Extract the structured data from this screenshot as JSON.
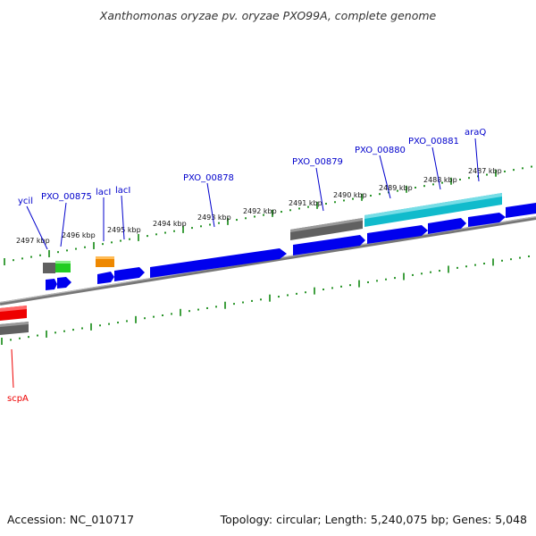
{
  "title": "Xanthomonas oryzae pv. oryzae PXO99A, complete genome",
  "footer": {
    "accession": "Accession: NC_010717",
    "topology": "Topology: circular; Length: 5,240,075 bp; Genes: 5,048"
  },
  "colors": {
    "backbone": "#808080",
    "tick": "#118811",
    "blue": "#0000ee",
    "gray": "#606060",
    "green": "#22cc22",
    "orange": "#ee8800",
    "cyan": "#11bbcc",
    "red": "#ee0000",
    "label_blue": "#0000cc",
    "label_red": "#ee0000"
  },
  "kbp_labels": [
    "2497 kbp",
    "2496 kbp",
    "2495 kbp",
    "2494 kbp",
    "2493 kbp",
    "2492 kbp",
    "2491 kbp",
    "2490 kbp",
    "2489 kbp",
    "2488 kbp",
    "2487 kbp"
  ],
  "gene_labels": [
    "ycil",
    "PXO_00875",
    "lacI",
    "lacI",
    "PXO_00878",
    "PXO_00879",
    "PXO_00880",
    "PXO_00881",
    "araQ",
    "scpA"
  ]
}
